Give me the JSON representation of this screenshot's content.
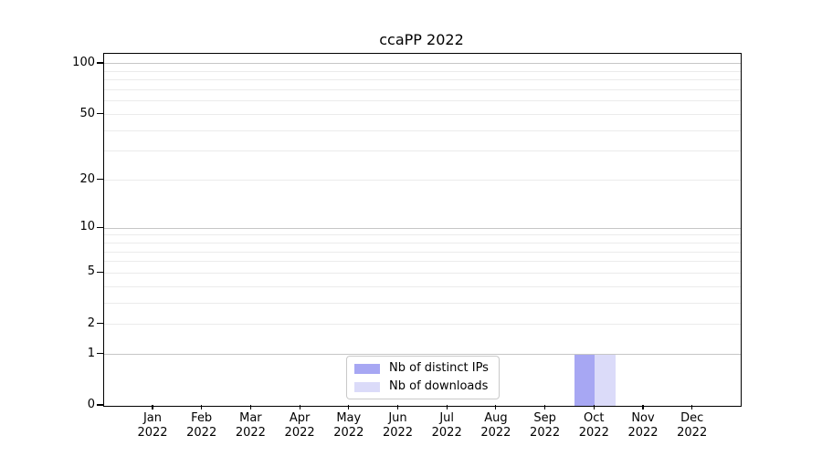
{
  "title": "ccaPP 2022",
  "chart_data": {
    "type": "bar",
    "title": "ccaPP 2022",
    "categories": [
      "Jan 2022",
      "Feb 2022",
      "Mar 2022",
      "Apr 2022",
      "May 2022",
      "Jun 2022",
      "Jul 2022",
      "Aug 2022",
      "Sep 2022",
      "Oct 2022",
      "Nov 2022",
      "Dec 2022"
    ],
    "series": [
      {
        "name": "Nb of distinct IPs",
        "color": "#a7a7f3",
        "values": [
          0,
          0,
          0,
          0,
          0,
          0,
          0,
          0,
          0,
          1,
          0,
          0
        ]
      },
      {
        "name": "Nb of downloads",
        "color": "#dbdbf9",
        "values": [
          0,
          0,
          0,
          0,
          0,
          0,
          0,
          0,
          0,
          1,
          0,
          0
        ]
      }
    ],
    "xlabel": "",
    "ylabel": "",
    "yscale": "log1p",
    "ylim": [
      0,
      115
    ],
    "yticks_labeled": [
      0,
      1,
      2,
      5,
      10,
      20,
      50,
      100
    ],
    "gridlines_major": [
      1,
      10,
      100
    ],
    "gridlines_minor": [
      2,
      3,
      4,
      5,
      6,
      7,
      8,
      9,
      20,
      30,
      40,
      50,
      60,
      70,
      80,
      90
    ],
    "grid": "on",
    "legend_position": "bottom-center-left"
  },
  "colors": {
    "axis": "#000000",
    "grid_major": "#c6c6c6",
    "grid_minor": "#ebebeb",
    "legend_border": "#c9c9c9",
    "background": "#ffffff"
  }
}
